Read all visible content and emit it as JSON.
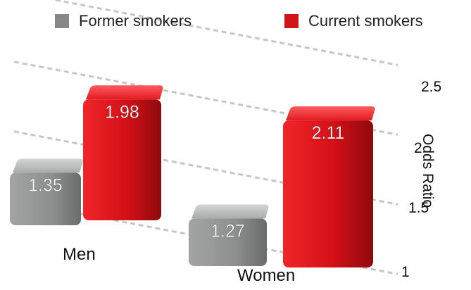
{
  "chart_data": {
    "type": "bar",
    "title": "",
    "xlabel": "",
    "ylabel": "Odds Ratio",
    "categories": [
      "Men",
      "Women"
    ],
    "series": [
      {
        "name": "Former smokers",
        "values": [
          1.35,
          1.27
        ],
        "color": "#868888"
      },
      {
        "name": "Current smokers",
        "values": [
          1.98,
          2.11
        ],
        "color": "#d0141a"
      }
    ],
    "ylim": [
      1,
      2.5
    ],
    "yticks": [
      "1",
      "1.5",
      "2",
      "2.5"
    ],
    "grid": true,
    "legend_position": "top"
  }
}
